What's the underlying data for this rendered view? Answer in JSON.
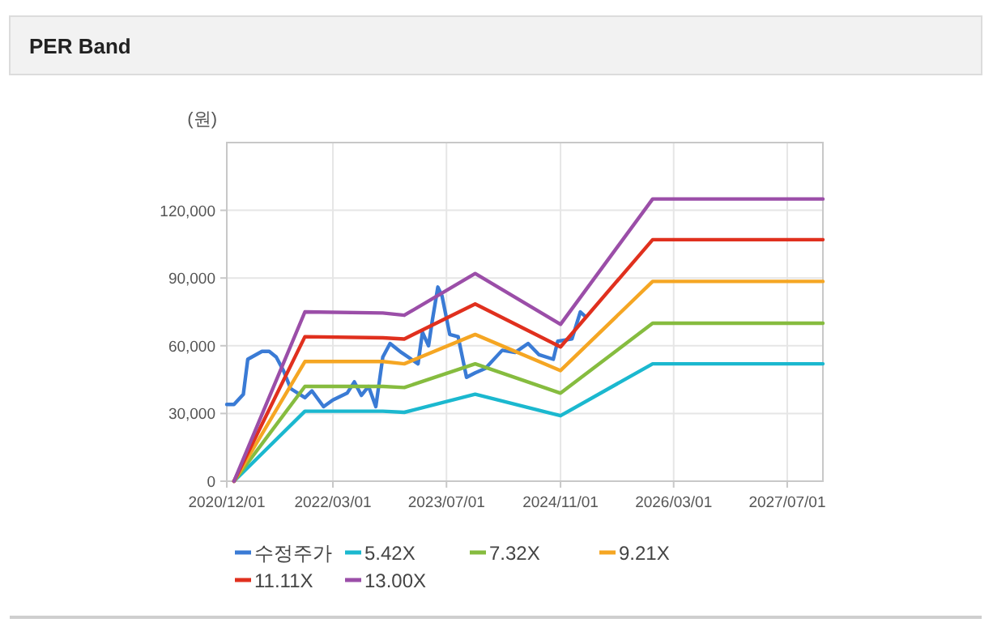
{
  "chart_data": {
    "type": "line",
    "title": "PER Band",
    "ylabel": "(원)",
    "xlim": [
      "2020-12-01",
      "2027-12-01"
    ],
    "xticks": [
      {
        "value": "2020-12-01",
        "label": "2020/12/01"
      },
      {
        "value": "2022-03-01",
        "label": "2022/03/01"
      },
      {
        "value": "2023-07-01",
        "label": "2023/07/01"
      },
      {
        "value": "2024-11-01",
        "label": "2024/11/01"
      },
      {
        "value": "2026-03-01",
        "label": "2026/03/01"
      },
      {
        "value": "2027-07-01",
        "label": "2027/07/01"
      }
    ],
    "ylim": [
      0,
      150000
    ],
    "yticks": [
      {
        "value": 0,
        "label": "0"
      },
      {
        "value": 30000,
        "label": "30,000"
      },
      {
        "value": 60000,
        "label": "60,000"
      },
      {
        "value": 90000,
        "label": "90,000"
      },
      {
        "value": 120000,
        "label": "120,000"
      }
    ],
    "grid": true,
    "legend": "bottom",
    "marker": "none",
    "line_style": "solid",
    "series": [
      {
        "name": "수정주가",
        "color": "#3a7bd5",
        "x": [
          "2020-12-01",
          "2021-01-01",
          "2021-02-10",
          "2021-03-01",
          "2021-05-01",
          "2021-06-01",
          "2021-07-01",
          "2021-08-01",
          "2021-09-01",
          "2021-11-01",
          "2021-12-01",
          "2022-01-20",
          "2022-03-01",
          "2022-05-01",
          "2022-06-01",
          "2022-07-01",
          "2022-08-01",
          "2022-09-01",
          "2022-10-01",
          "2022-11-01",
          "2022-12-20",
          "2023-03-01",
          "2023-03-20",
          "2023-04-15",
          "2023-05-01",
          "2023-05-25",
          "2023-06-12",
          "2023-07-15",
          "2023-08-20",
          "2023-09-25",
          "2023-11-01",
          "2023-12-15",
          "2024-02-25",
          "2024-04-20",
          "2024-06-15",
          "2024-08-01",
          "2024-10-01",
          "2024-10-20",
          "2024-12-20",
          "2025-01-25",
          "2025-02-15"
        ],
        "values": [
          34000,
          34000,
          38500,
          54000,
          57500,
          57500,
          55000,
          49000,
          41000,
          37000,
          40000,
          33000,
          36000,
          39000,
          44000,
          38000,
          42000,
          33000,
          55000,
          61000,
          57000,
          52000,
          66000,
          60000,
          71000,
          86000,
          82000,
          65000,
          64000,
          46000,
          48000,
          50000,
          58000,
          57000,
          61000,
          56000,
          54000,
          62000,
          63000,
          75000,
          73000
        ]
      },
      {
        "name": "5.42X",
        "color": "#1bb8cf",
        "x": [
          "2021-01-01",
          "2021-11-01",
          "2022-10-01",
          "2023-01-01",
          "2023-11-01",
          "2024-11-01",
          "2025-12-01",
          "2027-12-01"
        ],
        "values": [
          0,
          31000,
          31000,
          30500,
          38500,
          29000,
          52000,
          52000
        ]
      },
      {
        "name": "7.32X",
        "color": "#86bc3f",
        "x": [
          "2021-01-01",
          "2021-11-01",
          "2022-10-01",
          "2023-01-01",
          "2023-11-01",
          "2024-11-01",
          "2025-12-01",
          "2027-12-01"
        ],
        "values": [
          0,
          42000,
          42000,
          41500,
          52000,
          39000,
          70000,
          70000
        ]
      },
      {
        "name": "9.21X",
        "color": "#f5a623",
        "x": [
          "2021-01-01",
          "2021-11-01",
          "2022-10-01",
          "2023-01-01",
          "2023-11-01",
          "2024-11-01",
          "2025-12-01",
          "2027-12-01"
        ],
        "values": [
          0,
          53000,
          53000,
          52000,
          65000,
          49000,
          88500,
          88500
        ]
      },
      {
        "name": "11.11X",
        "color": "#e0301e",
        "x": [
          "2021-01-01",
          "2021-11-01",
          "2022-10-01",
          "2023-01-01",
          "2023-11-01",
          "2024-11-01",
          "2025-12-01",
          "2027-12-01"
        ],
        "values": [
          0,
          64000,
          63500,
          63000,
          78500,
          59500,
          107000,
          107000
        ]
      },
      {
        "name": "13.00X",
        "color": "#9b4ea8",
        "x": [
          "2021-01-01",
          "2021-11-01",
          "2022-10-01",
          "2023-01-01",
          "2023-11-01",
          "2024-11-01",
          "2025-12-01",
          "2027-12-01"
        ],
        "values": [
          0,
          75000,
          74500,
          73500,
          92000,
          69500,
          125000,
          125000
        ]
      }
    ]
  }
}
